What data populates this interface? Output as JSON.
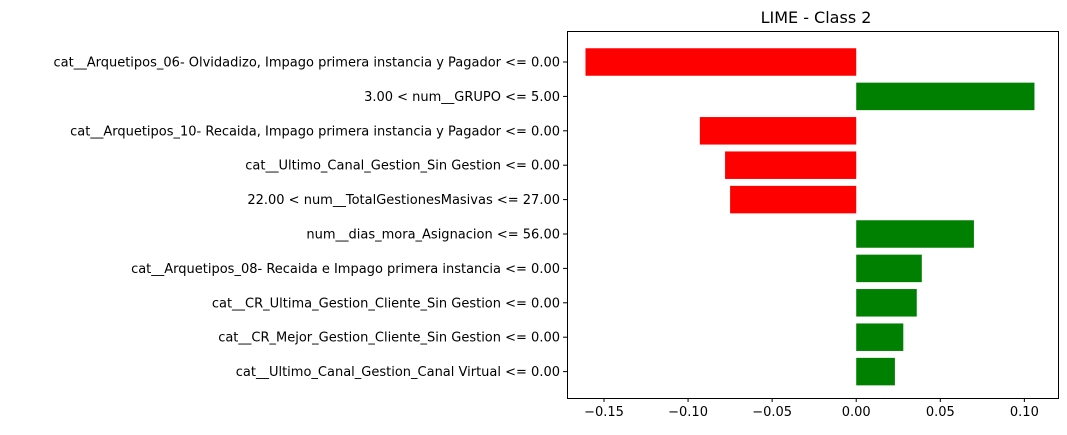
{
  "chart_data": {
    "type": "bar",
    "orientation": "horizontal",
    "title": "LIME - Class 2",
    "xlabel": "",
    "ylabel": "",
    "xlim": [
      -0.172,
      0.12
    ],
    "xticks": [
      -0.15,
      -0.1,
      -0.05,
      0.0,
      0.05,
      0.1
    ],
    "xtick_labels": [
      "−0.15",
      "−0.10",
      "−0.05",
      "0.00",
      "0.05",
      "0.10"
    ],
    "grid": false,
    "colors": {
      "positive": "#008000",
      "negative": "#ff0000"
    },
    "categories": [
      "cat__Arquetipos_06- Olvidadizo, Impago primera instancia y Pagador <= 0.00",
      "3.00 < num__GRUPO <= 5.00",
      "cat__Arquetipos_10- Recaida, Impago primera instancia y Pagador <= 0.00",
      "cat__Ultimo_Canal_Gestion_Sin Gestion <= 0.00",
      "22.00 < num__TotalGestionesMasivas <= 27.00",
      "num__dias_mora_Asignacion <= 56.00",
      "cat__Arquetipos_08- Recaida e Impago primera instancia <= 0.00",
      "cat__CR_Ultima_Gestion_Cliente_Sin Gestion <= 0.00",
      "cat__CR_Mejor_Gestion_Cliente_Sin Gestion <= 0.00",
      "cat__Ultimo_Canal_Gestion_Canal Virtual <= 0.00"
    ],
    "values": [
      -0.161,
      0.106,
      -0.093,
      -0.078,
      -0.075,
      0.07,
      0.039,
      0.036,
      0.028,
      0.023
    ]
  }
}
